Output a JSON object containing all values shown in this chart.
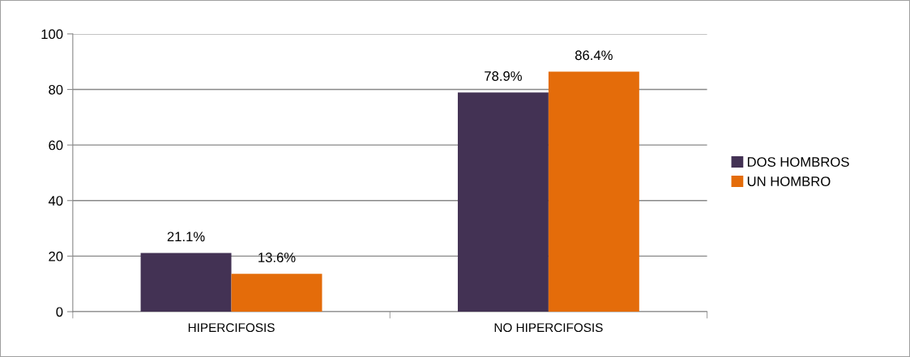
{
  "chart_data": {
    "type": "bar",
    "categories": [
      "HIPERCIFOSIS",
      "NO HIPERCIFOSIS"
    ],
    "series": [
      {
        "name": "DOS HOMBROS",
        "color": "#433254",
        "values": [
          21.1,
          78.9
        ],
        "value_labels": [
          "21.1%",
          "78.9%"
        ]
      },
      {
        "name": "UN HOMBRO",
        "color": "#e46c0a",
        "values": [
          13.6,
          86.4
        ],
        "value_labels": [
          "13.6%",
          "86.4%"
        ]
      }
    ],
    "ylim": [
      0,
      100
    ],
    "yticks": [
      0,
      20,
      40,
      60,
      80,
      100
    ],
    "grid": "y",
    "legend": "right"
  }
}
